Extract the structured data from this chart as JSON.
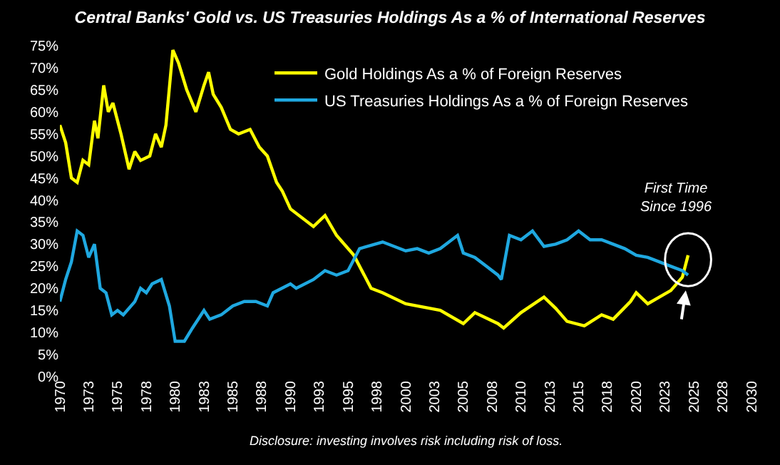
{
  "chart_data": {
    "type": "line",
    "title": "Central Banks' Gold vs. US Treasuries Holdings As a % of International Reserves",
    "series": [
      {
        "name": "Gold Holdings As a % of Foreign Reserves",
        "color": "#ffff00",
        "x": [
          1970,
          1970.5,
          1971,
          1971.5,
          1972,
          1972.5,
          1973,
          1973.3,
          1973.8,
          1974.2,
          1974.6,
          1975.3,
          1976,
          1976.5,
          1977,
          1977.8,
          1978.3,
          1978.8,
          1979.2,
          1979.8,
          1980.3,
          1981,
          1981.8,
          1982.5,
          1982.9,
          1983.3,
          1984,
          1984.8,
          1985.5,
          1986.5,
          1987.3,
          1988,
          1988.8,
          1989.3,
          1990,
          1992,
          1993,
          1994,
          1995.5,
          1997,
          1998,
          2000,
          2003,
          2005,
          2006,
          2008,
          2008.5,
          2010,
          2012,
          2013,
          2014,
          2015.5,
          2017,
          2018,
          2019.5,
          2020,
          2021,
          2022,
          2023,
          2024,
          2024.5
        ],
        "values": [
          57,
          53,
          45,
          44,
          49,
          48,
          58,
          54,
          66,
          60,
          62,
          55,
          47,
          51,
          49,
          50,
          55,
          52,
          57,
          74,
          71,
          65,
          60,
          66,
          69,
          64,
          61,
          56,
          55,
          56,
          52,
          50,
          44,
          42,
          38,
          34,
          36.5,
          32,
          27.5,
          20,
          19,
          16.5,
          15,
          12,
          14.5,
          12,
          11,
          14.5,
          18,
          15.5,
          12.5,
          11.5,
          14,
          13,
          17,
          19,
          16.5,
          18,
          19.5,
          22.5,
          27.5
        ]
      },
      {
        "name": "US Treasuries Holdings As a % of Foreign Reserves",
        "color": "#1fa8e0",
        "x": [
          1970,
          1970.5,
          1971,
          1971.5,
          1972,
          1972.5,
          1973,
          1973.5,
          1974,
          1974.5,
          1975,
          1975.5,
          1976.5,
          1977,
          1977.5,
          1978,
          1978.8,
          1979.5,
          1980,
          1980.8,
          1981.5,
          1982.5,
          1983,
          1984,
          1985,
          1986,
          1987,
          1988,
          1988.5,
          1990,
          1990.5,
          1992,
          1993,
          1994,
          1995,
          1996,
          1998,
          2000,
          2001,
          2002,
          2003,
          2004.5,
          2005,
          2006,
          2007,
          2008,
          2008.3,
          2009,
          2010,
          2011,
          2012,
          2013,
          2014,
          2015,
          2016,
          2017,
          2018,
          2019,
          2020,
          2021,
          2022,
          2023,
          2024,
          2024.5
        ],
        "values": [
          17,
          22,
          26,
          33,
          32,
          27,
          30,
          20,
          19,
          14,
          15,
          14,
          17,
          20,
          19,
          21,
          22,
          16,
          8,
          8,
          11,
          15,
          13,
          14,
          16,
          17,
          17,
          16,
          19,
          21,
          20,
          22,
          24,
          23,
          24,
          29,
          30.5,
          28.5,
          29,
          28,
          29,
          32,
          28,
          27,
          25,
          23,
          22,
          32,
          31,
          33,
          29.5,
          30,
          31,
          33,
          31,
          31,
          30,
          29,
          27.5,
          27,
          26,
          25,
          24,
          23
        ]
      }
    ],
    "xlim": [
      1970,
      2030
    ],
    "xticks": [
      1970,
      {
        "value": 1972.5,
        "label": "1973"
      },
      1975,
      {
        "value": 1977.5,
        "label": "1978"
      },
      1980,
      {
        "value": 1982.5,
        "label": "1983"
      },
      1985,
      {
        "value": 1987.5,
        "label": "1988"
      },
      1990,
      {
        "value": 1992.5,
        "label": "1993"
      },
      1995,
      {
        "value": 1997.5,
        "label": "1998"
      },
      2000,
      {
        "value": 2002.5,
        "label": "2003"
      },
      2005,
      {
        "value": 2007.5,
        "label": "2008"
      },
      2010,
      {
        "value": 2012.5,
        "label": "2013"
      },
      2015,
      {
        "value": 2017.5,
        "label": "2018"
      },
      2020,
      {
        "value": 2022.5,
        "label": "2023"
      },
      2025,
      {
        "value": 2027.5,
        "label": "2028"
      },
      2030
    ],
    "ylim": [
      0,
      75
    ],
    "yticks": [
      {
        "value": 0,
        "label": "0%"
      },
      {
        "value": 5,
        "label": "5%"
      },
      {
        "value": 10,
        "label": "10%"
      },
      {
        "value": 15,
        "label": "15%"
      },
      {
        "value": 20,
        "label": "20%"
      },
      {
        "value": 25,
        "label": "25%"
      },
      {
        "value": 30,
        "label": "30%"
      },
      {
        "value": 35,
        "label": "35%"
      },
      {
        "value": 40,
        "label": "40%"
      },
      {
        "value": 45,
        "label": "45%"
      },
      {
        "value": 50,
        "label": "50%"
      },
      {
        "value": 55,
        "label": "55%"
      },
      {
        "value": 60,
        "label": "60%"
      },
      {
        "value": 65,
        "label": "65%"
      },
      {
        "value": 70,
        "label": "70%"
      },
      {
        "value": 75,
        "label": "75%"
      }
    ],
    "grid": false,
    "legend": "top",
    "marker": "none",
    "line_style": "solid",
    "annotations": [
      "First Time Since 1996",
      "Disclosure: investing involves risk including risk of loss."
    ]
  }
}
